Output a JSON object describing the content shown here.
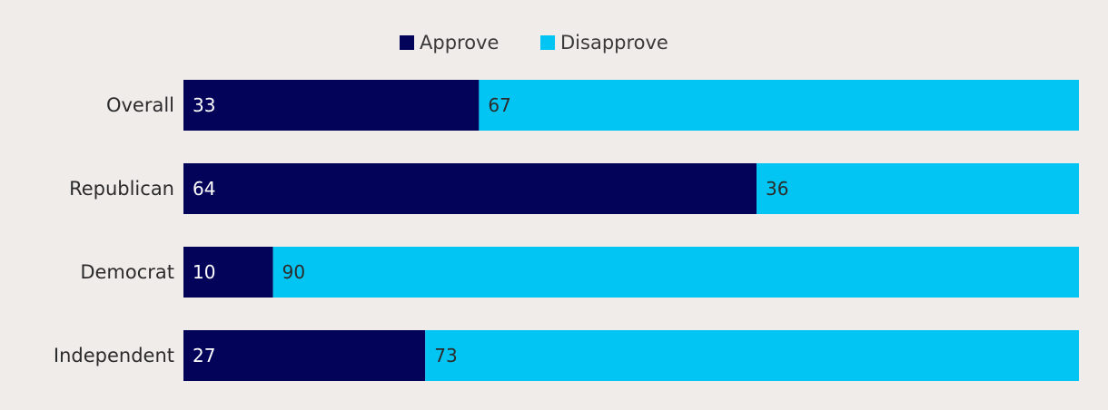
{
  "colors": {
    "background": "#f0ecea",
    "approve": "#03035a",
    "disapprove": "#02c5f3",
    "approve_label": "#ffffff",
    "disapprove_label": "#2b2b2b"
  },
  "chart_data": {
    "type": "bar",
    "orientation": "horizontal",
    "stacked": true,
    "categories": [
      "Overall",
      "Republican",
      "Democrat",
      "Independent"
    ],
    "series": [
      {
        "name": "Approve",
        "values": [
          33,
          64,
          10,
          27
        ]
      },
      {
        "name": "Disapprove",
        "values": [
          67,
          36,
          90,
          73
        ]
      }
    ],
    "xlim": [
      0,
      100
    ],
    "legend_position": "top-center",
    "grid": false,
    "title": "",
    "xlabel": "",
    "ylabel": ""
  }
}
